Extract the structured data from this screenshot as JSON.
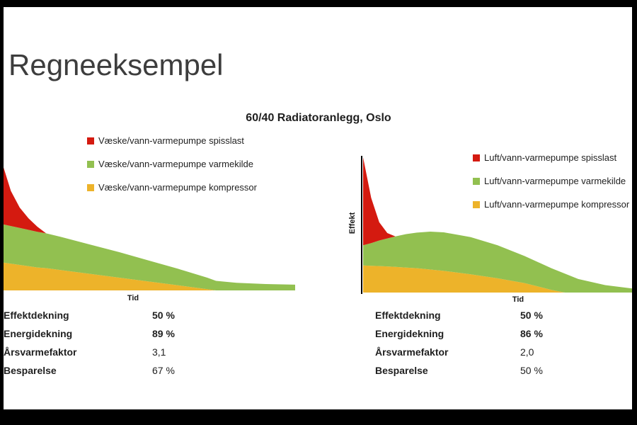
{
  "slide": {
    "title": "Regneeksempel",
    "subtitle": "60/40 Radiatoranlegg, Oslo"
  },
  "colors": {
    "spisslast": "#d41a10",
    "varmekilde": "#92c050",
    "kompressor": "#edb32a"
  },
  "chart_data": [
    {
      "type": "area",
      "name": "vaeske-vann-varmepumpe",
      "xlabel": "Tid",
      "ylabel": "",
      "legend": [
        "Væske/vann-varmepumpe spisslast",
        "Væske/vann-varmepumpe varmekilde",
        "Væske/vann-varmepumpe kompressor"
      ],
      "x": [
        0,
        0.03,
        0.06,
        0.09,
        0.12,
        0.15,
        0.2,
        0.3,
        0.4,
        0.5,
        0.6,
        0.7,
        0.73,
        0.8,
        0.9,
        1.0
      ],
      "series": [
        {
          "name": "kompressor",
          "color": "#edb32a",
          "values": [
            0.22,
            0.21,
            0.2,
            0.19,
            0.18,
            0.175,
            0.16,
            0.13,
            0.1,
            0.07,
            0.04,
            0.01,
            0,
            0,
            0,
            0
          ]
        },
        {
          "name": "varmekilde",
          "color": "#92c050",
          "values": [
            0.3,
            0.295,
            0.29,
            0.285,
            0.28,
            0.273,
            0.26,
            0.23,
            0.2,
            0.165,
            0.13,
            0.09,
            0.075,
            0.06,
            0.05,
            0.045
          ]
        },
        {
          "name": "spisslast",
          "color": "#d41a10",
          "values": [
            0.48,
            0.275,
            0.16,
            0.09,
            0.04,
            0,
            0,
            0,
            0,
            0,
            0,
            0,
            0,
            0,
            0,
            0
          ]
        }
      ],
      "stats": [
        {
          "label": "Effektdekning",
          "value": "50 %"
        },
        {
          "label": "Energidekning",
          "value": "89 %"
        },
        {
          "label": "Årsvarmefaktor",
          "value": "3,1"
        },
        {
          "label": "Besparelse",
          "value": "67 %"
        }
      ]
    },
    {
      "type": "area",
      "name": "luft-vann-varmepumpe",
      "xlabel": "Tid",
      "ylabel": "Effekt",
      "legend": [
        "Luft/vann-varmepumpe spisslast",
        "Luft/vann-varmepumpe varmekilde",
        "Luft/vann-varmepumpe kompressor"
      ],
      "x": [
        0,
        0.03,
        0.06,
        0.09,
        0.12,
        0.16,
        0.2,
        0.25,
        0.3,
        0.4,
        0.5,
        0.6,
        0.7,
        0.75,
        0.8,
        0.9,
        1.0
      ],
      "series": [
        {
          "name": "kompressor",
          "color": "#edb32a",
          "values": [
            0.2,
            0.198,
            0.196,
            0.193,
            0.19,
            0.185,
            0.18,
            0.17,
            0.16,
            0.135,
            0.105,
            0.07,
            0.02,
            0,
            0,
            0,
            0
          ]
        },
        {
          "name": "varmekilde",
          "color": "#92c050",
          "values": [
            0.15,
            0.167,
            0.189,
            0.207,
            0.225,
            0.247,
            0.263,
            0.28,
            0.285,
            0.275,
            0.245,
            0.2,
            0.16,
            0.14,
            0.1,
            0.055,
            0.03
          ]
        },
        {
          "name": "spisslast",
          "color": "#d41a10",
          "values": [
            0.65,
            0.335,
            0.135,
            0.04,
            0,
            0,
            0,
            0,
            0,
            0,
            0,
            0,
            0,
            0,
            0,
            0,
            0
          ]
        }
      ],
      "stats": [
        {
          "label": "Effektdekning",
          "value": "50 %"
        },
        {
          "label": "Energidekning",
          "value": "86 %"
        },
        {
          "label": "Årsvarmefaktor",
          "value": "2,0"
        },
        {
          "label": "Besparelse",
          "value": "50 %"
        }
      ]
    }
  ]
}
